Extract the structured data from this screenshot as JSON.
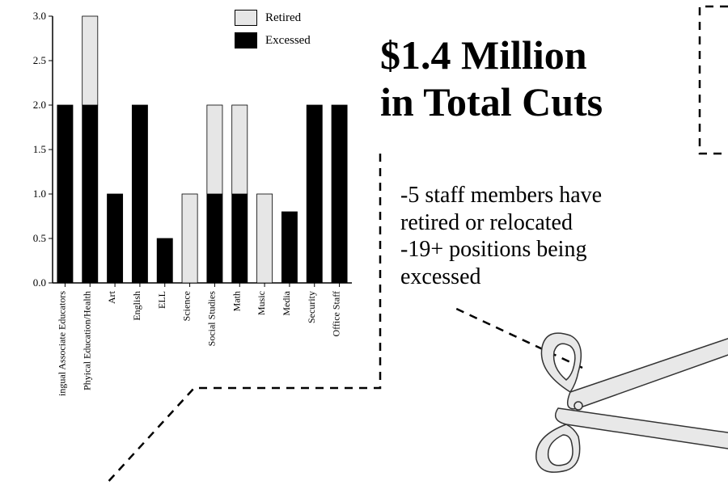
{
  "chart": {
    "type": "stacked-bar",
    "ylim": [
      0,
      3
    ],
    "ytick_step": 0.5,
    "yticks": [
      "0.0",
      "0.5",
      "1.0",
      "1.5",
      "2.0",
      "2.5",
      "3.0"
    ],
    "categories": [
      "Bilingual Associate Educators",
      "Phyical Education/Health",
      "Art",
      "English",
      "ELL",
      "Science",
      "Social Studies",
      "Math",
      "Music",
      "Media",
      "Security",
      "Office Staff"
    ],
    "series": [
      {
        "name": "Excessed",
        "color": "#000000",
        "values": [
          2,
          2,
          1,
          2,
          0.5,
          0,
          1,
          1,
          0,
          0.8,
          2,
          2
        ]
      },
      {
        "name": "Retired",
        "color": "#e6e6e6",
        "values": [
          0,
          1,
          0,
          0,
          0,
          1,
          1,
          1,
          1,
          0,
          0,
          0
        ]
      }
    ],
    "bar_width": 0.62,
    "axis_color": "#000000",
    "tick_fontsize": 13,
    "label_fontsize": 12,
    "label_rotation": 90,
    "background_color": "#ffffff"
  },
  "legend": {
    "items": [
      {
        "label": "Retired",
        "fill": "#e6e6e6",
        "stroke": "#000000"
      },
      {
        "label": "Excessed",
        "fill": "#000000",
        "stroke": "#000000"
      }
    ],
    "fontsize": 15
  },
  "headline": {
    "line1": "$1.4 Million",
    "line2": "in Total Cuts",
    "fontsize": 50,
    "font_weight": "bold",
    "color": "#000000"
  },
  "subtext": {
    "line1": "-5 staff members have",
    "line2": "retired or relocated",
    "line3": "-19+ positions being",
    "line4": "excessed",
    "fontsize": 28,
    "color": "#000000"
  },
  "dashed_line": {
    "stroke": "#000000",
    "stroke_width": 2.5,
    "dash": "10,8"
  },
  "scissors": {
    "fill": "#e8e8e8",
    "stroke": "#333333",
    "stroke_width": 1.5
  }
}
